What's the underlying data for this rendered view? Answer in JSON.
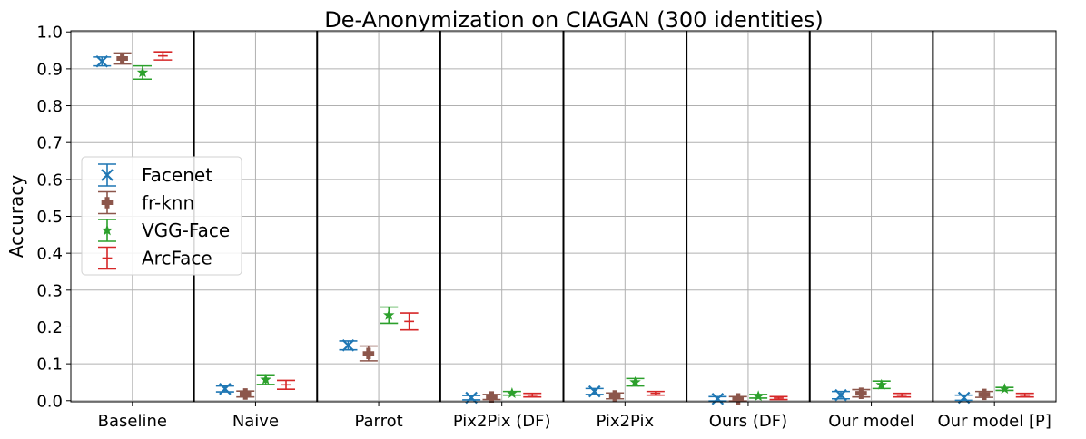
{
  "chart_data": {
    "type": "scatter",
    "title": "De-Anonymization on CIAGAN (300 identities)",
    "xlabel": "",
    "ylabel": "Accuracy",
    "ylim": [
      0.0,
      1.0
    ],
    "yticks": [
      "0.0",
      "0.1",
      "0.2",
      "0.3",
      "0.4",
      "0.5",
      "0.6",
      "0.7",
      "0.8",
      "0.9",
      "1.0"
    ],
    "categories": [
      "Baseline",
      "Naive",
      "Parrot",
      "Pix2Pix (DF)",
      "Pix2Pix",
      "Ours (DF)",
      "Our model",
      "Our model [P]"
    ],
    "grid": true,
    "legend_position": "center-left",
    "series": [
      {
        "name": "Facenet",
        "color": "#1f77b4",
        "marker": "x",
        "values": [
          0.92,
          0.032,
          0.15,
          0.008,
          0.025,
          0.005,
          0.015,
          0.008
        ],
        "errors": [
          0.012,
          0.008,
          0.012,
          0.006,
          0.008,
          0.006,
          0.01,
          0.007
        ]
      },
      {
        "name": "fr-knn",
        "color": "#8c564b",
        "marker": "plus",
        "values": [
          0.928,
          0.018,
          0.128,
          0.01,
          0.013,
          0.005,
          0.02,
          0.017
        ],
        "errors": [
          0.015,
          0.008,
          0.02,
          0.007,
          0.008,
          0.006,
          0.01,
          0.008
        ]
      },
      {
        "name": "VGG-Face",
        "color": "#2ca02c",
        "marker": "star",
        "values": [
          0.89,
          0.057,
          0.232,
          0.02,
          0.05,
          0.012,
          0.043,
          0.032
        ],
        "errors": [
          0.018,
          0.013,
          0.022,
          0.005,
          0.01,
          0.005,
          0.01,
          0.004
        ]
      },
      {
        "name": "ArcFace",
        "color": "#d62728",
        "marker": "bar",
        "values": [
          0.935,
          0.043,
          0.215,
          0.015,
          0.02,
          0.007,
          0.015,
          0.015
        ],
        "errors": [
          0.011,
          0.012,
          0.023,
          0.005,
          0.005,
          0.004,
          0.005,
          0.005
        ]
      }
    ]
  }
}
